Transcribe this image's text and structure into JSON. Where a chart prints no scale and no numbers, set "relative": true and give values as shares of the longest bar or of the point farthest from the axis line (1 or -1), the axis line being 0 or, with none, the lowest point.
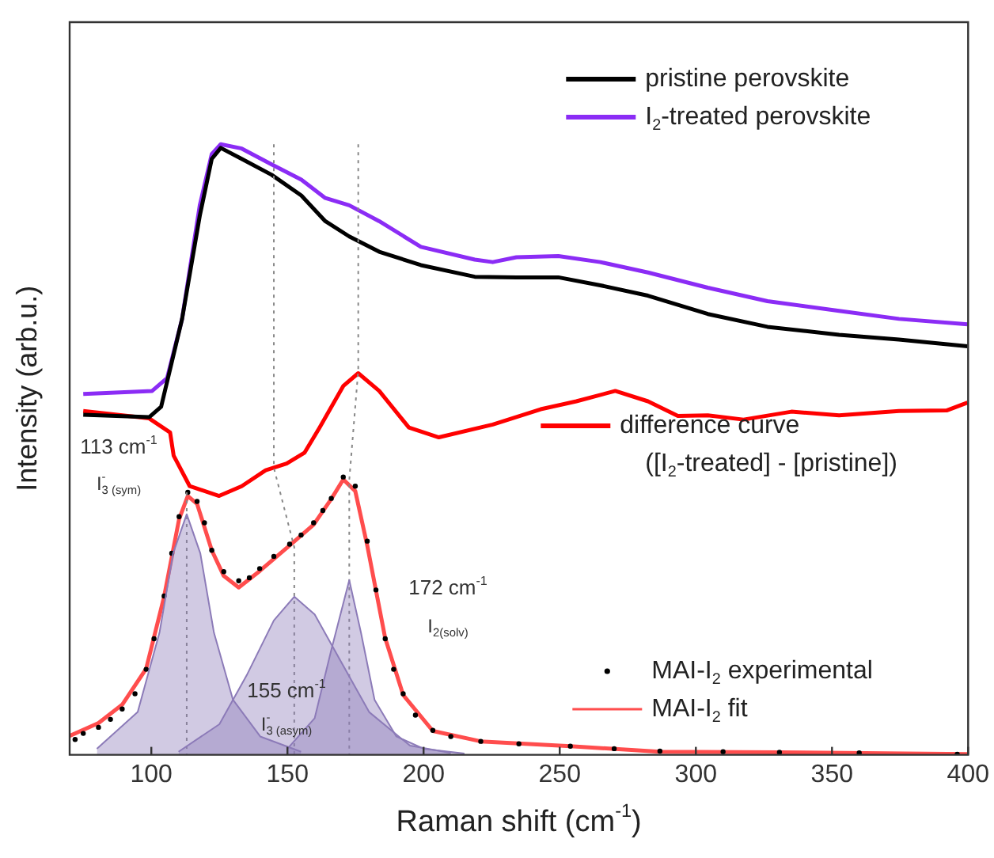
{
  "chart_data": {
    "type": "line",
    "relative": true,
    "xlabel": "Raman shift (cm$^{-1}$)",
    "ylabel": "Intensity (arb.u.)",
    "xlim": [
      70,
      400
    ],
    "xticks": [
      100,
      150,
      200,
      250,
      300,
      350,
      400
    ],
    "tick_labels": "x",
    "legend": "right",
    "marker": "none",
    "grid": false,
    "series": [
      {
        "type": "area",
        "color": "#8c7bb8",
        "x": [
          80,
          95,
          103,
          108,
          113,
          118,
          123,
          130,
          140,
          155
        ],
        "values": [
          0.01,
          0.07,
          0.2,
          0.33,
          0.394,
          0.33,
          0.2,
          0.09,
          0.03,
          0.005
        ]
      },
      {
        "type": "area",
        "color": "#8c7bb8",
        "x": [
          110,
          125,
          135,
          145,
          152.5,
          160,
          170,
          180,
          195,
          210
        ],
        "values": [
          0.005,
          0.05,
          0.13,
          0.22,
          0.259,
          0.23,
          0.15,
          0.07,
          0.015,
          0.003
        ]
      },
      {
        "type": "area",
        "color": "#8c7bb8",
        "x": [
          150,
          160,
          166,
          172.7,
          177,
          182,
          190,
          200,
          215
        ],
        "values": [
          0.01,
          0.06,
          0.17,
          0.286,
          0.2,
          0.09,
          0.03,
          0.01,
          0.002
        ]
      },
      {
        "color": "#888888",
        "line_style": "dotted",
        "x": [
          145,
          145,
          152.5,
          152.5
        ],
        "values": [
          1,
          0.47,
          0.34,
          0
        ]
      },
      {
        "color": "#888888",
        "line_style": "dotted",
        "x": [
          176,
          176,
          172.7,
          172.7
        ],
        "values": [
          1,
          0.63,
          0.45,
          0
        ]
      },
      {
        "color": "#888888",
        "line_style": "dotted",
        "x": [
          113,
          113
        ],
        "values": [
          0.43,
          0
        ]
      },
      {
        "name": "pristine perovskite",
        "color": "#000000",
        "x": [
          75,
          99.2,
          103.6,
          111.3,
          117.8,
          122.2,
          125.5,
          133.2,
          144.2,
          155.1,
          163.9,
          172.7,
          183.7,
          199,
          218.8,
          234.1,
          249.5,
          264.9,
          282.4,
          304.4,
          326.3,
          352.6,
          374.6,
          399.8
        ],
        "values": [
          0.557,
          0.553,
          0.57,
          0.714,
          0.883,
          0.976,
          0.994,
          0.976,
          0.95,
          0.916,
          0.874,
          0.849,
          0.824,
          0.802,
          0.783,
          0.782,
          0.782,
          0.769,
          0.752,
          0.722,
          0.701,
          0.688,
          0.68,
          0.669
        ]
      },
      {
        "name": "I$_{2}$-treated perovskite",
        "color": "#8b2cf5",
        "x": [
          75,
          100.3,
          105.8,
          111.3,
          117.8,
          122.2,
          125.5,
          133.2,
          144.2,
          155.1,
          163.9,
          172.7,
          183.7,
          199,
          218.8,
          225.4,
          234.1,
          249.5,
          264.9,
          282.4,
          304.4,
          326.3,
          352.6,
          374.6,
          399.8
        ],
        "values": [
          0.591,
          0.596,
          0.617,
          0.714,
          0.9,
          0.984,
          1,
          0.993,
          0.967,
          0.942,
          0.912,
          0.9,
          0.874,
          0.832,
          0.811,
          0.807,
          0.815,
          0.817,
          0.807,
          0.79,
          0.765,
          0.743,
          0.727,
          0.714,
          0.705
        ]
      },
      {
        "name": "difference curve\n([I$_{2}$-treated] - [pristine])",
        "color": "#ff0000",
        "x": [
          75,
          99.2,
          106.9,
          108.2,
          114.1,
          124.9,
          133.2,
          142,
          149.7,
          156.3,
          161.8,
          170.5,
          176,
          183.7,
          194.6,
          205.6,
          225.4,
          243,
          256.1,
          270.4,
          282.4,
          293.4,
          304.4,
          317.5,
          335.1,
          352.6,
          374.6,
          392.1,
          399.8
        ],
        "values": [
          0.563,
          0.551,
          0.528,
          0.49,
          0.44,
          0.424,
          0.44,
          0.466,
          0.477,
          0.495,
          0.536,
          0.604,
          0.625,
          0.596,
          0.536,
          0.52,
          0.541,
          0.566,
          0.579,
          0.596,
          0.579,
          0.555,
          0.556,
          0.549,
          0.562,
          0.556,
          0.563,
          0.564,
          0.577
        ]
      },
      {
        "name": "MAI-I$_{2}$ experimental",
        "type": "scatter",
        "marker": "circle",
        "color": "#000000",
        "x": [
          72,
          75,
          80.6,
          85,
          89.3,
          94,
          98.1,
          101,
          104.7,
          107.5,
          110.2,
          113.4,
          116.8,
          119.5,
          122.2,
          126.6,
          132.1,
          136,
          139.8,
          145,
          150.8,
          155,
          159.6,
          163,
          166.1,
          170.5,
          174.9,
          179.3,
          182.5,
          185.9,
          189,
          192.5,
          197,
          203.4,
          210,
          221,
          235,
          253.9,
          270,
          286.8,
          310,
          330.7,
          360,
          396
        ],
        "values": [
          0.025,
          0.035,
          0.045,
          0.058,
          0.075,
          0.1,
          0.14,
          0.19,
          0.26,
          0.33,
          0.39,
          0.43,
          0.415,
          0.38,
          0.335,
          0.3,
          0.285,
          0.29,
          0.305,
          0.325,
          0.345,
          0.36,
          0.38,
          0.4,
          0.42,
          0.455,
          0.44,
          0.35,
          0.27,
          0.19,
          0.14,
          0.1,
          0.065,
          0.04,
          0.03,
          0.022,
          0.018,
          0.014,
          0.01,
          0.006,
          0.005,
          0.004,
          0.003,
          0.001
        ]
      },
      {
        "name": "MAI-I$_{2}$ fit",
        "color": "#ff4d4d",
        "x": [
          70,
          80.6,
          89.3,
          98.1,
          104.7,
          110.2,
          113.4,
          116.8,
          122.2,
          126.6,
          132.1,
          139.8,
          150.8,
          159.6,
          166.1,
          170.5,
          174.9,
          179.3,
          185.9,
          192.5,
          203.4,
          221,
          253.9,
          286.8,
          330.7,
          399.8
        ],
        "values": [
          0.031,
          0.052,
          0.082,
          0.141,
          0.259,
          0.386,
          0.424,
          0.411,
          0.335,
          0.293,
          0.274,
          0.301,
          0.343,
          0.377,
          0.419,
          0.451,
          0.432,
          0.343,
          0.191,
          0.098,
          0.039,
          0.022,
          0.014,
          0.005,
          0.004,
          0.001
        ]
      }
    ],
    "annotations": [
      "113 cm$^{-1}$",
      "I$_{3 (sym)}$$^{-}$",
      "172 cm$^{-1}$",
      "I$_{2(solv)}$",
      "155 cm$^{-1}$",
      "I$_{3 (asym)}$$^{-}$"
    ]
  }
}
